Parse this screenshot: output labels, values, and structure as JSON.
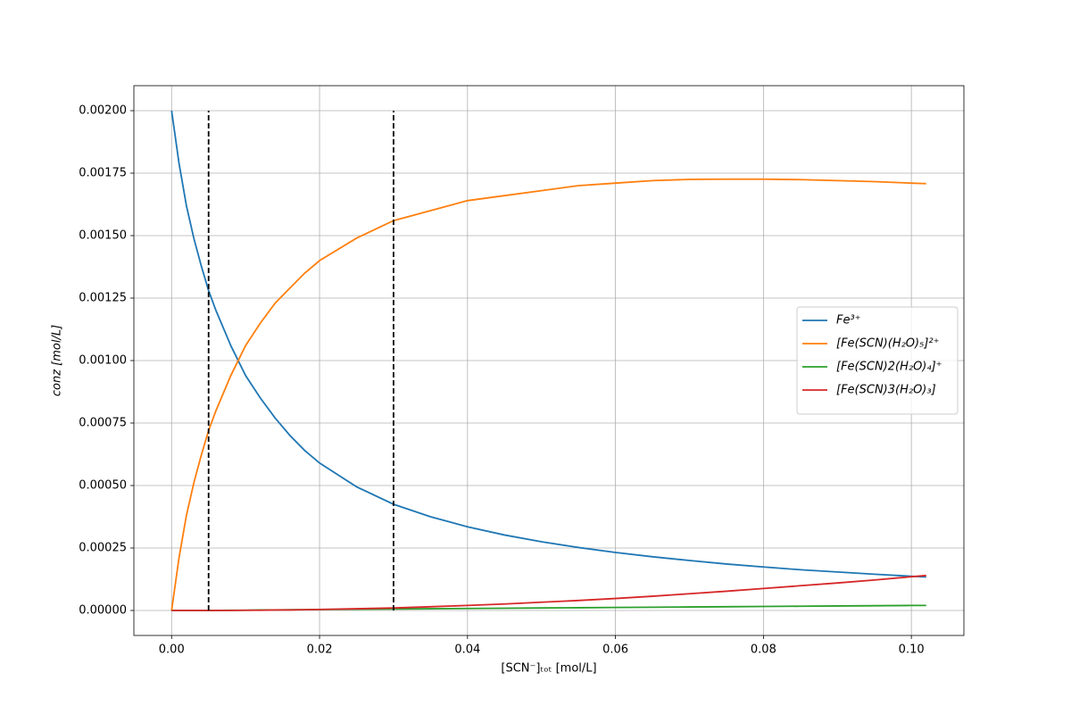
{
  "chart_data": {
    "type": "line",
    "xlabel": "[SCN⁻]ₜₒₜ [mol/L]",
    "ylabel": "conz [mol/L]",
    "x": [
      0,
      0.001,
      0.002,
      0.003,
      0.004,
      0.005,
      0.006,
      0.008,
      0.01,
      0.012,
      0.014,
      0.016,
      0.018,
      0.02,
      0.025,
      0.03,
      0.035,
      0.04,
      0.045,
      0.05,
      0.055,
      0.06,
      0.065,
      0.07,
      0.075,
      0.08,
      0.085,
      0.09,
      0.095,
      0.1,
      0.102
    ],
    "series": [
      {
        "name": "Fe³⁺",
        "color": "#1f77b4",
        "values": [
          0.002,
          0.00179,
          0.00162,
          0.00149,
          0.00138,
          0.00128,
          0.0012,
          0.00106,
          0.00094,
          0.00085,
          0.00077,
          0.0007,
          0.00064,
          0.00059,
          0.000495,
          0.000425,
          0.000375,
          0.000335,
          0.000302,
          0.000275,
          0.000252,
          0.000232,
          0.000215,
          0.0002,
          0.000186,
          0.000174,
          0.000163,
          0.000154,
          0.000145,
          0.000137,
          0.000134
        ]
      },
      {
        "name": "[Fe(SCN)(H₂O)₅]²⁺",
        "color": "#ff7f0e",
        "values": [
          0,
          0.00021,
          0.00038,
          0.00051,
          0.00062,
          0.00072,
          0.0008,
          0.00094,
          0.00106,
          0.00115,
          0.00123,
          0.00129,
          0.00135,
          0.0014,
          0.00149,
          0.00156,
          0.0016,
          0.00164,
          0.00166,
          0.00168,
          0.0017,
          0.00171,
          0.00172,
          0.001725,
          0.001726,
          0.001726,
          0.001724,
          0.00172,
          0.001716,
          0.00171,
          0.001708
        ]
      },
      {
        "name": "[Fe(SCN)2(H₂O)₄]⁺",
        "color": "#2ca02c",
        "values": [
          0,
          0,
          0,
          0,
          0,
          0,
          0,
          1e-06,
          1e-06,
          2e-06,
          2e-06,
          3e-06,
          3e-06,
          4e-06,
          5e-06,
          6e-06,
          7e-06,
          8e-06,
          9e-06,
          1e-05,
          1.1e-05,
          1.2e-05,
          1.3e-05,
          1.4e-05,
          1.5e-05,
          1.6e-05,
          1.7e-05,
          1.8e-05,
          1.9e-05,
          2e-05,
          2e-05
        ]
      },
      {
        "name": "[Fe(SCN)3(H₂O)₃]",
        "color": "#d62728",
        "values": [
          0,
          0,
          0,
          0,
          0,
          0,
          0,
          0,
          1e-06,
          1e-06,
          2e-06,
          2e-06,
          3e-06,
          4e-06,
          7e-06,
          1e-05,
          1.5e-05,
          2e-05,
          2.6e-05,
          3.3e-05,
          4e-05,
          4.8e-05,
          5.7e-05,
          6.7e-05,
          7.7e-05,
          8.8e-05,
          9.9e-05,
          0.00011,
          0.000122,
          0.000135,
          0.00014
        ]
      }
    ],
    "vlines": {
      "x": [
        0.005,
        0.03
      ],
      "ymin": 0,
      "ymax": 0.002,
      "color": "#000000"
    },
    "xlim": [
      -0.0051,
      0.1071
    ],
    "ylim": [
      -0.0001,
      0.0021
    ],
    "xticks": [
      {
        "value": 0,
        "label": "0.00"
      },
      {
        "value": 0.02,
        "label": "0.02"
      },
      {
        "value": 0.04,
        "label": "0.04"
      },
      {
        "value": 0.06,
        "label": "0.06"
      },
      {
        "value": 0.08,
        "label": "0.08"
      },
      {
        "value": 0.1,
        "label": "0.10"
      }
    ],
    "yticks": [
      {
        "value": 0,
        "label": "0.00000"
      },
      {
        "value": 0.00025,
        "label": "0.00025"
      },
      {
        "value": 0.0005,
        "label": "0.00050"
      },
      {
        "value": 0.00075,
        "label": "0.00075"
      },
      {
        "value": 0.001,
        "label": "0.00100"
      },
      {
        "value": 0.00125,
        "label": "0.00125"
      },
      {
        "value": 0.0015,
        "label": "0.00150"
      },
      {
        "value": 0.00175,
        "label": "0.00175"
      },
      {
        "value": 0.002,
        "label": "0.00200"
      }
    ],
    "grid": true,
    "legend": "right"
  }
}
